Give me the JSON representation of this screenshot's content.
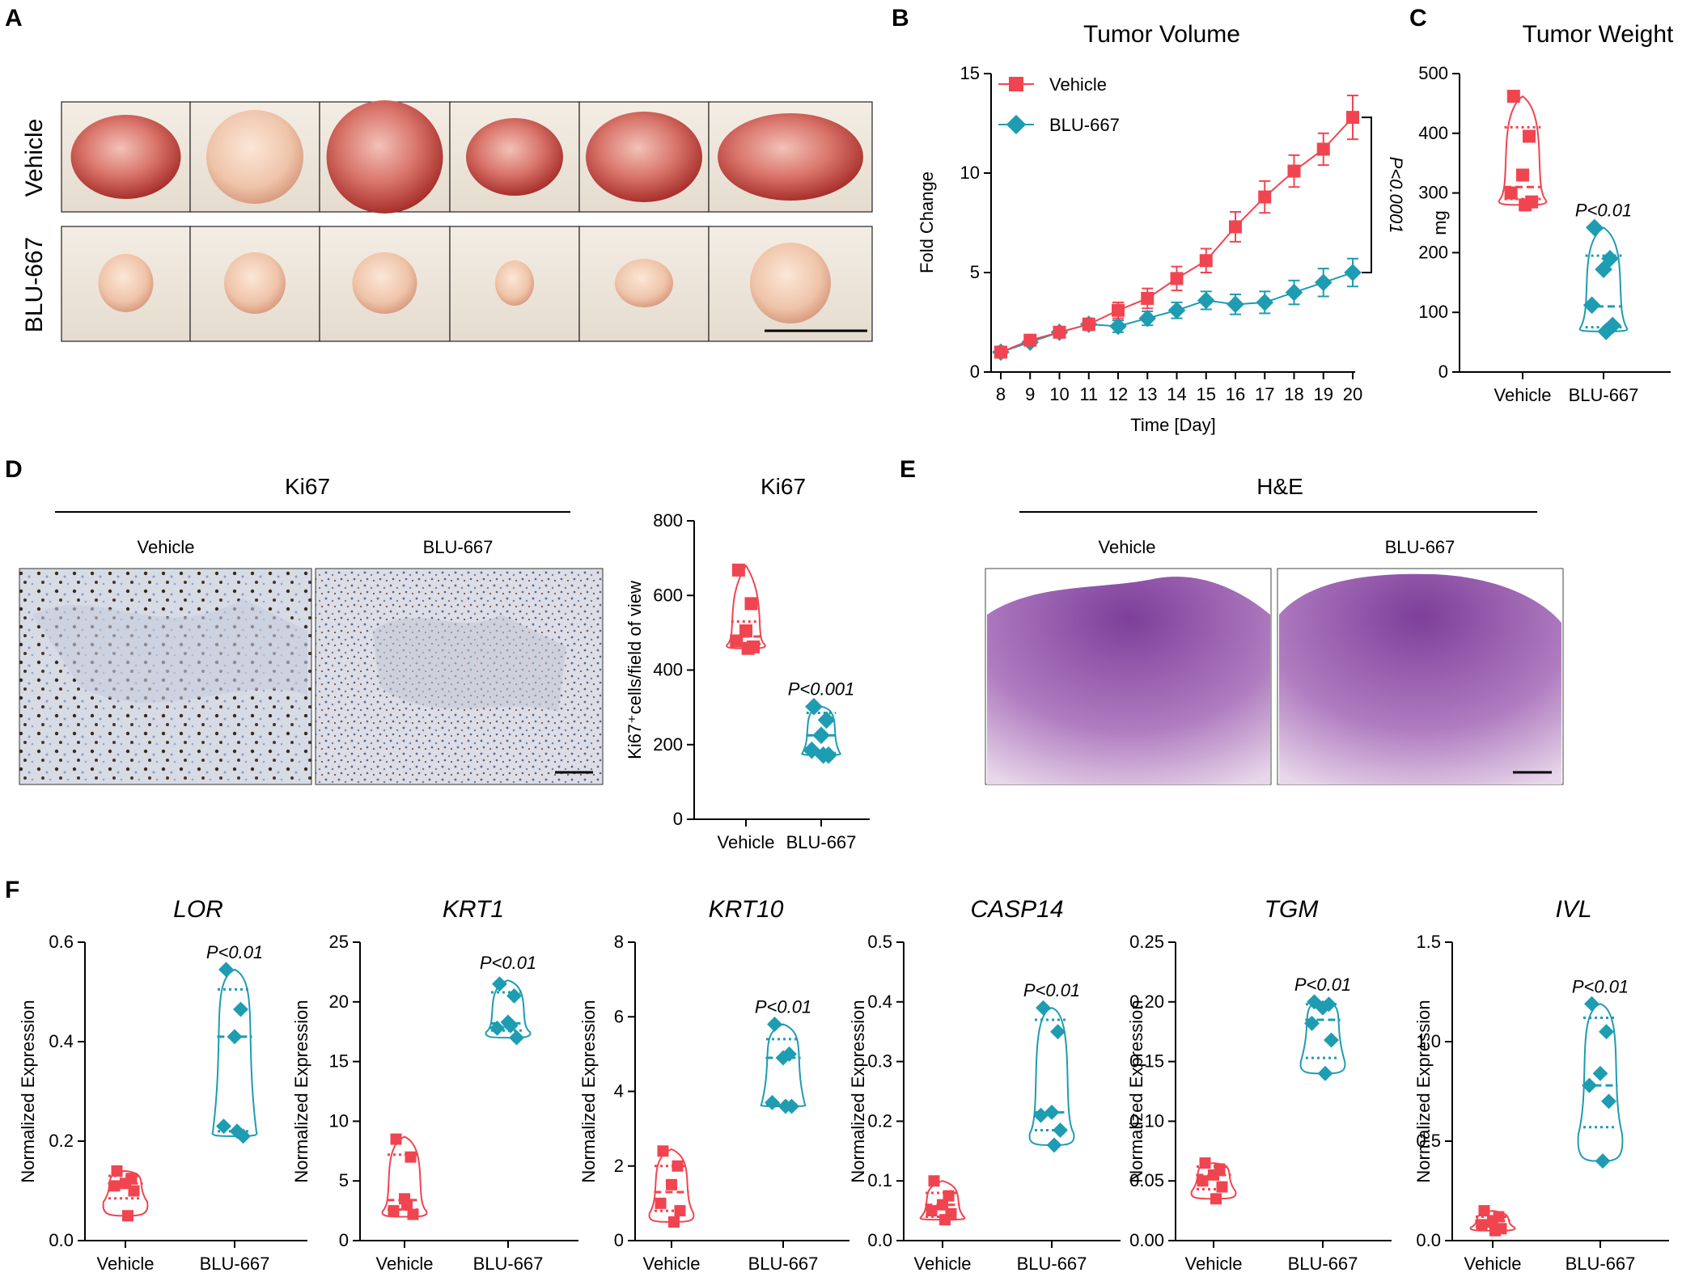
{
  "colors": {
    "vehicle": "#f04550",
    "blu": "#1e9cb2",
    "axis": "#000000"
  },
  "panel_letters": [
    "A",
    "B",
    "C",
    "D",
    "E",
    "F"
  ],
  "panelA": {
    "row_labels": [
      "Vehicle",
      "BLU-667"
    ],
    "tumor_count": 6
  },
  "chart_data": [
    {
      "id": "B",
      "type": "line",
      "title": "Tumor Volume",
      "xlabel": "Time [Day]",
      "ylabel": "Fold Change",
      "x": [
        8,
        9,
        10,
        11,
        12,
        13,
        14,
        15,
        16,
        17,
        18,
        19,
        20
      ],
      "ylim": [
        0,
        15
      ],
      "yticks": [
        0,
        5,
        10,
        15
      ],
      "series": [
        {
          "name": "Vehicle",
          "marker": "square",
          "values": [
            1.0,
            1.6,
            2.0,
            2.4,
            3.1,
            3.7,
            4.7,
            5.6,
            7.3,
            8.8,
            10.1,
            11.2,
            12.8
          ],
          "errors": [
            0.15,
            0.2,
            0.25,
            0.3,
            0.4,
            0.5,
            0.6,
            0.6,
            0.75,
            0.8,
            0.8,
            0.8,
            1.1
          ]
        },
        {
          "name": "BLU-667",
          "marker": "diamond",
          "values": [
            1.0,
            1.5,
            2.0,
            2.4,
            2.3,
            2.7,
            3.1,
            3.6,
            3.4,
            3.5,
            4.0,
            4.5,
            5.0
          ],
          "errors": [
            0.1,
            0.15,
            0.2,
            0.2,
            0.3,
            0.35,
            0.4,
            0.45,
            0.5,
            0.55,
            0.6,
            0.7,
            0.7
          ]
        }
      ],
      "annotation": "P<0.0001"
    },
    {
      "id": "C",
      "type": "violin",
      "title": "Tumor Weight",
      "ylabel": "mg",
      "ylim": [
        0,
        500
      ],
      "yticks": [
        0,
        100,
        200,
        300,
        400,
        500
      ],
      "categories": [
        "Vehicle",
        "BLU-667"
      ],
      "groups": [
        {
          "name": "Vehicle",
          "marker": "square",
          "points": [
            462,
            395,
            330,
            300,
            285,
            280
          ],
          "min": 280,
          "max": 462,
          "q1": 290,
          "median": 310,
          "q3": 410
        },
        {
          "name": "BLU-667",
          "marker": "diamond",
          "points": [
            242,
            190,
            172,
            112,
            78,
            68
          ],
          "min": 68,
          "max": 242,
          "q1": 75,
          "median": 110,
          "q3": 195
        }
      ],
      "annotation": "P<0.01"
    },
    {
      "id": "D",
      "type": "violin",
      "title": "Ki67",
      "ylabel": "Ki67⁺cells/field of view",
      "ylim": [
        0,
        800
      ],
      "yticks": [
        0,
        200,
        400,
        600,
        800
      ],
      "categories": [
        "Vehicle",
        "BLU-667"
      ],
      "groups": [
        {
          "name": "Vehicle",
          "marker": "square",
          "points": [
            668,
            578,
            505,
            478,
            462,
            458
          ],
          "min": 458,
          "max": 680,
          "q1": 470,
          "median": 490,
          "q3": 530
        },
        {
          "name": "BLU-667",
          "marker": "diamond",
          "points": [
            302,
            266,
            225,
            185,
            172,
            172
          ],
          "min": 172,
          "max": 302,
          "q1": 178,
          "median": 225,
          "q3": 285
        }
      ],
      "annotation": "P<0.001"
    },
    {
      "id": "F-LOR",
      "type": "violin",
      "title": "LOR",
      "ylabel": "Normalized Expression",
      "ylim": [
        0,
        0.6
      ],
      "yticks": [
        "0.0",
        "0.2",
        "0.4",
        "0.6"
      ],
      "ytick_values": [
        0,
        0.2,
        0.4,
        0.6
      ],
      "categories": [
        "Vehicle",
        "BLU-667"
      ],
      "groups": [
        {
          "name": "Vehicle",
          "marker": "square",
          "points": [
            0.14,
            0.125,
            0.115,
            0.11,
            0.1,
            0.05
          ],
          "min": 0.05,
          "max": 0.14,
          "q1": 0.085,
          "median": 0.115,
          "q3": 0.13
        },
        {
          "name": "BLU-667",
          "marker": "diamond",
          "points": [
            0.545,
            0.465,
            0.41,
            0.23,
            0.21,
            0.22
          ],
          "min": 0.21,
          "max": 0.545,
          "q1": 0.22,
          "median": 0.41,
          "q3": 0.505
        }
      ],
      "annotation": "P<0.01"
    },
    {
      "id": "F-KRT1",
      "type": "violin",
      "title": "KRT1",
      "ylabel": "Normalized Expression",
      "ylim": [
        0,
        25
      ],
      "yticks": [
        "0",
        "5",
        "10",
        "15",
        "20",
        "25"
      ],
      "ytick_values": [
        0,
        5,
        10,
        15,
        20,
        25
      ],
      "categories": [
        "Vehicle",
        "BLU-667"
      ],
      "groups": [
        {
          "name": "Vehicle",
          "marker": "square",
          "points": [
            8.5,
            7.0,
            3.5,
            2.5,
            2.2,
            3.0
          ],
          "min": 2.0,
          "max": 8.7,
          "q1": 2.6,
          "median": 3.4,
          "q3": 7.2
        },
        {
          "name": "BLU-667",
          "marker": "diamond",
          "points": [
            21.5,
            20.5,
            18.3,
            17.8,
            17.0,
            18.0
          ],
          "min": 17.0,
          "max": 21.8,
          "q1": 17.6,
          "median": 18.2,
          "q3": 20.8
        }
      ],
      "annotation": "P<0.01"
    },
    {
      "id": "F-KRT10",
      "type": "violin",
      "title": "KRT10",
      "ylabel": "Normalized Expression",
      "ylim": [
        0,
        8
      ],
      "yticks": [
        "0",
        "2",
        "4",
        "6",
        "8"
      ],
      "ytick_values": [
        0,
        2,
        4,
        6,
        8
      ],
      "categories": [
        "Vehicle",
        "BLU-667"
      ],
      "groups": [
        {
          "name": "Vehicle",
          "marker": "square",
          "points": [
            2.4,
            2.0,
            1.5,
            1.0,
            0.8,
            0.5
          ],
          "min": 0.5,
          "max": 2.45,
          "q1": 0.8,
          "median": 1.3,
          "q3": 2.0
        },
        {
          "name": "BLU-667",
          "marker": "diamond",
          "points": [
            5.8,
            5.0,
            4.9,
            3.7,
            3.6,
            3.6
          ],
          "min": 3.6,
          "max": 5.8,
          "q1": 3.65,
          "median": 4.9,
          "q3": 5.4
        }
      ],
      "annotation": "P<0.01"
    },
    {
      "id": "F-CASP14",
      "type": "violin",
      "title": "CASP14",
      "ylabel": "Normalized Expression",
      "ylim": [
        0,
        0.5
      ],
      "yticks": [
        "0.0",
        "0.1",
        "0.2",
        "0.3",
        "0.4",
        "0.5"
      ],
      "ytick_values": [
        0,
        0.1,
        0.2,
        0.3,
        0.4,
        0.5
      ],
      "categories": [
        "Vehicle",
        "BLU-667"
      ],
      "groups": [
        {
          "name": "Vehicle",
          "marker": "square",
          "points": [
            0.1,
            0.075,
            0.06,
            0.05,
            0.045,
            0.035
          ],
          "min": 0.035,
          "max": 0.1,
          "q1": 0.04,
          "median": 0.06,
          "q3": 0.08
        },
        {
          "name": "BLU-667",
          "marker": "diamond",
          "points": [
            0.39,
            0.35,
            0.215,
            0.21,
            0.185,
            0.16
          ],
          "min": 0.16,
          "max": 0.39,
          "q1": 0.185,
          "median": 0.215,
          "q3": 0.37
        }
      ],
      "annotation": "P<0.01"
    },
    {
      "id": "F-TGM",
      "type": "violin",
      "title": "TGM",
      "ylabel": "Normalized Expression",
      "ylim": [
        0,
        0.25
      ],
      "yticks": [
        "0.00",
        "0.05",
        "0.10",
        "0.15",
        "0.20",
        "0.25"
      ],
      "ytick_values": [
        0,
        0.05,
        0.1,
        0.15,
        0.2,
        0.25
      ],
      "categories": [
        "Vehicle",
        "BLU-667"
      ],
      "groups": [
        {
          "name": "Vehicle",
          "marker": "square",
          "points": [
            0.065,
            0.06,
            0.055,
            0.05,
            0.045,
            0.035
          ],
          "min": 0.035,
          "max": 0.065,
          "q1": 0.043,
          "median": 0.055,
          "q3": 0.062
        },
        {
          "name": "BLU-667",
          "marker": "diamond",
          "points": [
            0.2,
            0.198,
            0.195,
            0.182,
            0.168,
            0.14
          ],
          "min": 0.14,
          "max": 0.2,
          "q1": 0.153,
          "median": 0.185,
          "q3": 0.198
        }
      ],
      "annotation": "P<0.01"
    },
    {
      "id": "F-IVL",
      "type": "violin",
      "title": "IVL",
      "ylabel": "Normalized Expression",
      "ylim": [
        0,
        1.5
      ],
      "yticks": [
        "0.0",
        "0.5",
        "1.0",
        "1.5"
      ],
      "ytick_values": [
        0,
        0.5,
        1.0,
        1.5
      ],
      "categories": [
        "Vehicle",
        "BLU-667"
      ],
      "groups": [
        {
          "name": "Vehicle",
          "marker": "square",
          "points": [
            0.15,
            0.12,
            0.1,
            0.08,
            0.06,
            0.05
          ],
          "min": 0.05,
          "max": 0.15,
          "q1": 0.07,
          "median": 0.1,
          "q3": 0.12
        },
        {
          "name": "BLU-667",
          "marker": "diamond",
          "points": [
            1.19,
            1.05,
            0.84,
            0.78,
            0.7,
            0.4
          ],
          "min": 0.4,
          "max": 1.19,
          "q1": 0.57,
          "median": 0.78,
          "q3": 1.12
        }
      ],
      "annotation": "P<0.01"
    }
  ],
  "panelD_images": {
    "title": "Ki67",
    "labels": [
      "Vehicle",
      "BLU-667"
    ]
  },
  "panelE_images": {
    "title": "H&E",
    "labels": [
      "Vehicle",
      "BLU-667"
    ]
  }
}
